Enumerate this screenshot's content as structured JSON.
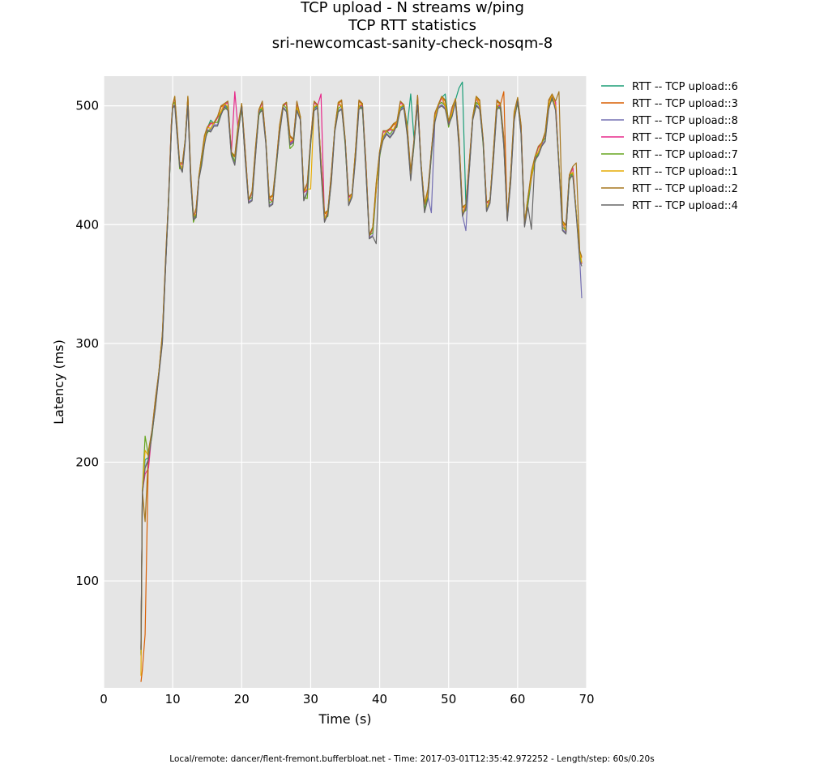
{
  "chart_data": {
    "type": "line",
    "title": [
      "TCP upload - N streams w/ping",
      "TCP RTT statistics",
      "sri-newcomcast-sanity-check-nosqm-8"
    ],
    "xlabel": "Time (s)",
    "ylabel": "Latency (ms)",
    "xlim": [
      0,
      70
    ],
    "ylim": [
      10,
      525
    ],
    "xticks": [
      0,
      10,
      20,
      30,
      40,
      50,
      60,
      70
    ],
    "yticks": [
      100,
      200,
      300,
      400,
      500
    ],
    "grid": true,
    "background": "#e5e5e5",
    "legend_placement": "outside-right",
    "base_x": [
      5.4,
      5.6,
      6.0,
      6.5,
      7.0,
      7.5,
      8.0,
      8.5,
      9.0,
      9.4,
      9.8,
      10.0,
      10.3,
      10.6,
      11.0,
      11.4,
      11.8,
      12.2,
      12.6,
      13.0,
      13.4,
      13.8,
      14.2,
      14.6,
      15.0,
      15.5,
      16.0,
      16.5,
      17.0,
      17.5,
      18.0,
      18.5,
      19.0,
      19.5,
      20.0,
      20.5,
      21.0,
      21.5,
      22.0,
      22.5,
      23.0,
      23.5,
      24.0,
      24.5,
      25.0,
      25.5,
      26.0,
      26.5,
      27.0,
      27.5,
      28.0,
      28.5,
      29.0,
      29.5,
      30.0,
      30.5,
      31.0,
      31.5,
      32.0,
      32.5,
      33.0,
      33.5,
      34.0,
      34.5,
      35.0,
      35.5,
      36.0,
      36.5,
      37.0,
      37.5,
      38.0,
      38.5,
      39.0,
      39.5,
      40.0,
      40.5,
      41.0,
      41.5,
      42.0,
      42.5,
      43.0,
      43.5,
      44.0,
      44.5,
      45.0,
      45.5,
      46.0,
      46.5,
      47.0,
      47.5,
      48.0,
      48.5,
      49.0,
      49.5,
      50.0,
      50.5,
      51.0,
      51.5,
      52.0,
      52.5,
      53.0,
      53.5,
      54.0,
      54.5,
      55.0,
      55.5,
      56.0,
      56.5,
      57.0,
      57.5,
      58.0,
      58.5,
      59.0,
      59.5,
      60.0,
      60.5,
      61.0,
      61.5,
      62.0,
      62.5,
      63.0,
      63.5,
      64.0,
      64.5,
      65.0,
      65.5,
      66.0,
      66.5,
      67.0,
      67.5,
      68.0,
      68.5,
      69.0,
      69.3
    ],
    "base_y": [
      40,
      175,
      200,
      205,
      225,
      250,
      275,
      305,
      370,
      420,
      480,
      500,
      505,
      480,
      450,
      448,
      470,
      505,
      440,
      405,
      410,
      440,
      455,
      470,
      480,
      482,
      485,
      488,
      495,
      500,
      500,
      460,
      455,
      480,
      500,
      460,
      420,
      425,
      460,
      495,
      500,
      470,
      420,
      420,
      450,
      480,
      500,
      500,
      470,
      470,
      500,
      490,
      425,
      430,
      470,
      500,
      500,
      450,
      405,
      410,
      440,
      480,
      500,
      500,
      470,
      420,
      425,
      460,
      500,
      500,
      450,
      390,
      395,
      430,
      460,
      475,
      478,
      478,
      480,
      485,
      500,
      500,
      480,
      440,
      470,
      505,
      450,
      415,
      425,
      460,
      490,
      500,
      505,
      500,
      485,
      495,
      505,
      470,
      410,
      415,
      450,
      490,
      505,
      500,
      470,
      415,
      420,
      460,
      500,
      500,
      470,
      405,
      440,
      490,
      505,
      480,
      400,
      420,
      440,
      455,
      462,
      468,
      475,
      500,
      508,
      500,
      450,
      400,
      395,
      440,
      445,
      410,
      375,
      368
    ],
    "series": [
      {
        "name": "RTT -- TCP upload::6",
        "color": "#1b9e77",
        "dy": 0,
        "overrides": [
          [
            51.5,
            515
          ],
          [
            52.0,
            520
          ],
          [
            44.5,
            510
          ],
          [
            49.5,
            510
          ],
          [
            15.5,
            488
          ],
          [
            16.5,
            490
          ]
        ]
      },
      {
        "name": "RTT -- TCP upload::3",
        "color": "#d95f02",
        "dy": 2,
        "overrides": [
          [
            5.4,
            15
          ],
          [
            5.6,
            25
          ],
          [
            6.0,
            55
          ],
          [
            58.0,
            512
          ],
          [
            69.3,
            372
          ]
        ]
      },
      {
        "name": "RTT -- TCP upload::8",
        "color": "#7570b3",
        "dy": -2,
        "overrides": [
          [
            52.5,
            395
          ],
          [
            69.3,
            338
          ],
          [
            47.5,
            410
          ]
        ]
      },
      {
        "name": "RTT -- TCP upload::5",
        "color": "#e7298a",
        "dy": 1,
        "overrides": [
          [
            19.0,
            512
          ],
          [
            31.5,
            510
          ],
          [
            6.0,
            190
          ],
          [
            6.5,
            195
          ]
        ]
      },
      {
        "name": "RTT -- TCP upload::7",
        "color": "#66a61e",
        "dy": -1,
        "overrides": [
          [
            6.0,
            222
          ],
          [
            27.0,
            464
          ],
          [
            29.5,
            422
          ]
        ]
      },
      {
        "name": "RTT -- TCP upload::1",
        "color": "#e6ab02",
        "dy": 1,
        "overrides": [
          [
            5.4,
            20
          ],
          [
            6.0,
            210
          ],
          [
            30.0,
            430
          ]
        ]
      },
      {
        "name": "RTT -- TCP upload::2",
        "color": "#a6761d",
        "dy": 3,
        "overrides": [
          [
            6.0,
            150
          ],
          [
            66.0,
            512
          ],
          [
            68.5,
            452
          ]
        ]
      },
      {
        "name": "RTT -- TCP upload::4",
        "color": "#666666",
        "dy": -3,
        "overrides": [
          [
            5.4,
            42
          ],
          [
            39.5,
            384
          ],
          [
            62.0,
            396
          ]
        ]
      }
    ]
  },
  "footer": "Local/remote: dancer/flent-fremont.bufferbloat.net - Time: 2017-03-01T12:35:42.972252 - Length/step: 60s/0.20s"
}
